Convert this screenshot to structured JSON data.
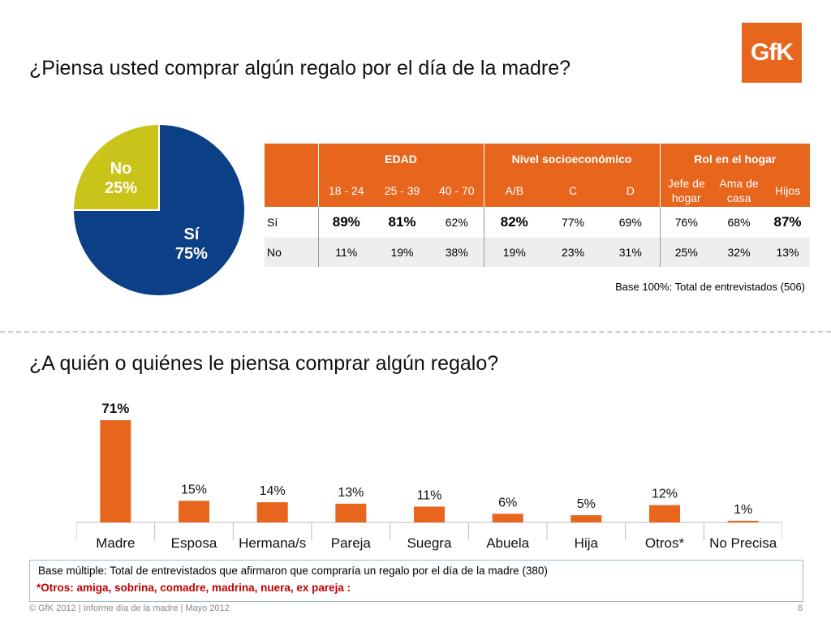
{
  "brand": {
    "logo_text": "GfK",
    "logo_color": "#e8651d"
  },
  "section1": {
    "title": "¿Piensa usted comprar algún regalo por el día de la madre?",
    "base_note": "Base 100%:  Total de entrevistados (506)"
  },
  "section2": {
    "title": "¿A quién o quiénes le piensa comprar algún regalo?",
    "base_note": "Base múltiple: Total de entrevistados que afirmaron que compraría un regalo por el día de la madre (380)",
    "otros_note": "*Otros:  amiga, sobrina, comadre, madrina, nuera, ex pareja :"
  },
  "table": {
    "groups": [
      "EDAD",
      "Nivel socioeconómico",
      "Rol en el hogar"
    ],
    "columns": [
      "18 - 24",
      "25 - 39",
      "40 - 70",
      "A/B",
      "C",
      "D",
      "Jefe de hogar",
      "Ama de casa",
      "Hijos"
    ],
    "rows": [
      {
        "label": "Sí",
        "values": [
          "89%",
          "81%",
          "62%",
          "82%",
          "77%",
          "69%",
          "76%",
          "68%",
          "87%"
        ]
      },
      {
        "label": "No",
        "values": [
          "11%",
          "19%",
          "38%",
          "19%",
          "23%",
          "31%",
          "25%",
          "32%",
          "13%"
        ]
      }
    ]
  },
  "chart_data": [
    {
      "type": "pie",
      "labels": [
        "Sí",
        "No"
      ],
      "values": [
        75,
        25
      ],
      "value_labels": [
        "75%",
        "25%"
      ],
      "colors": [
        "#0b3f86",
        "#c9c31a"
      ]
    },
    {
      "type": "bar",
      "categories": [
        "Madre",
        "Esposa",
        "Hermana/s",
        "Pareja",
        "Suegra",
        "Abuela",
        "Hija",
        "Otros*",
        "No Precisa"
      ],
      "values": [
        71,
        15,
        14,
        13,
        11,
        6,
        5,
        12,
        1
      ],
      "value_labels": [
        "71%",
        "15%",
        "14%",
        "13%",
        "11%",
        "6%",
        "5%",
        "12%",
        "1%"
      ],
      "color": "#e8651d",
      "grid": false
    }
  ],
  "footer": {
    "copyright": "© GfK 2012 | Informe día de la madre | Mayo 2012",
    "page_number": "8"
  }
}
